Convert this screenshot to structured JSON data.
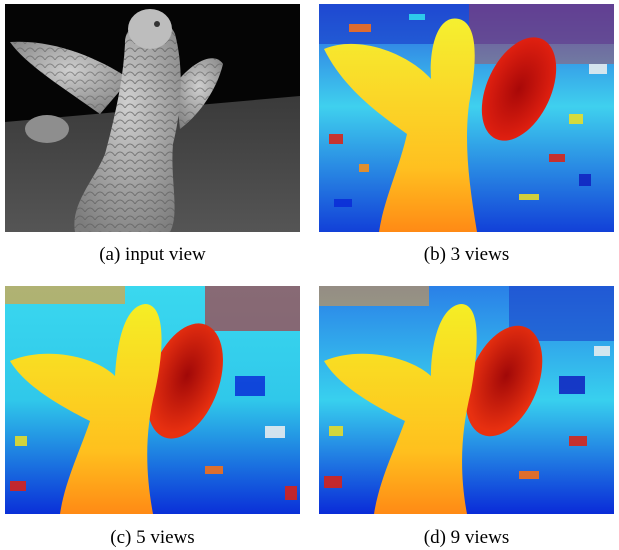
{
  "figure": {
    "panels": [
      {
        "id": "a",
        "caption": "(a) input view",
        "kind": "grayscale-photo"
      },
      {
        "id": "b",
        "caption": "(b) 3 views",
        "kind": "depth-map"
      },
      {
        "id": "c",
        "caption": "(c) 5 views",
        "kind": "depth-map"
      },
      {
        "id": "d",
        "caption": "(d) 9 views",
        "kind": "depth-map"
      }
    ],
    "colormap": {
      "near": "#c81010",
      "mid_near": "#ff7a10",
      "mid": "#f5e81a",
      "mid_far": "#33ddee",
      "far": "#0a2bd8"
    }
  }
}
